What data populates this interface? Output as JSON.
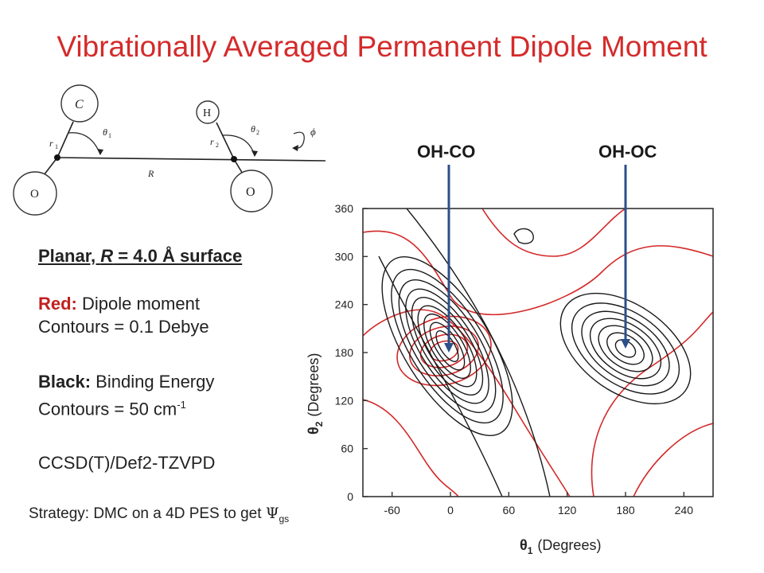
{
  "title": "Vibrationally Averaged Permanent Dipole Moment",
  "diagram": {
    "atoms": [
      "C",
      "O",
      "H",
      "O"
    ],
    "labels": [
      "r",
      "1",
      "θ",
      "1",
      "R",
      "r",
      "2",
      "θ",
      "2",
      "ϕ"
    ]
  },
  "notes": {
    "surface_prefix": "Planar, ",
    "surface_R": "R",
    "surface_suffix": " = 4.0 Å surface",
    "red_label": "Red:",
    "red_text": " Dipole moment",
    "red_contours": "Contours = 0.1 Debye",
    "black_label": "Black:",
    "black_text": " Binding Energy",
    "black_contours_base": "Contours = 50 cm",
    "black_contours_exp": "-1",
    "method": "CCSD(T)/Def2-TZVPD"
  },
  "strategy": {
    "text": "Strategy: DMC on a 4D PES to get ",
    "symbol": "Ψ",
    "sub": "gs"
  },
  "arrows": {
    "left_label": "OH-CO",
    "right_label": "OH-OC"
  },
  "colors": {
    "title": "#d42b2b",
    "dipole_contours": "#d42828",
    "energy_contours": "#1a1a1a",
    "arrow": "#2c4f88"
  },
  "chart_data": {
    "type": "contour",
    "xlabel_symbol": "θ",
    "xlabel_sub": "1",
    "xlabel_unit": "(Degrees)",
    "ylabel_symbol": "θ",
    "ylabel_sub": "2",
    "ylabel_unit": "(Degrees)",
    "xlim": [
      -90,
      270
    ],
    "ylim": [
      0,
      360
    ],
    "x_ticks": [
      "-60",
      "0",
      "60",
      "120",
      "180",
      "240"
    ],
    "x_tick_values": [
      -60,
      0,
      60,
      120,
      180,
      240
    ],
    "y_ticks": [
      "0",
      "60",
      "120",
      "180",
      "240",
      "300",
      "360"
    ],
    "y_tick_values": [
      0,
      60,
      120,
      180,
      240,
      300,
      360
    ],
    "binding_energy_minima": [
      {
        "theta1": 0,
        "theta2": 180,
        "label": "OH-CO"
      },
      {
        "theta1": 180,
        "theta2": 185,
        "label": "OH-OC"
      }
    ],
    "series": [
      {
        "name": "Dipole moment",
        "color": "#d42828"
      },
      {
        "name": "Binding Energy",
        "color": "#1a1a1a"
      }
    ]
  }
}
